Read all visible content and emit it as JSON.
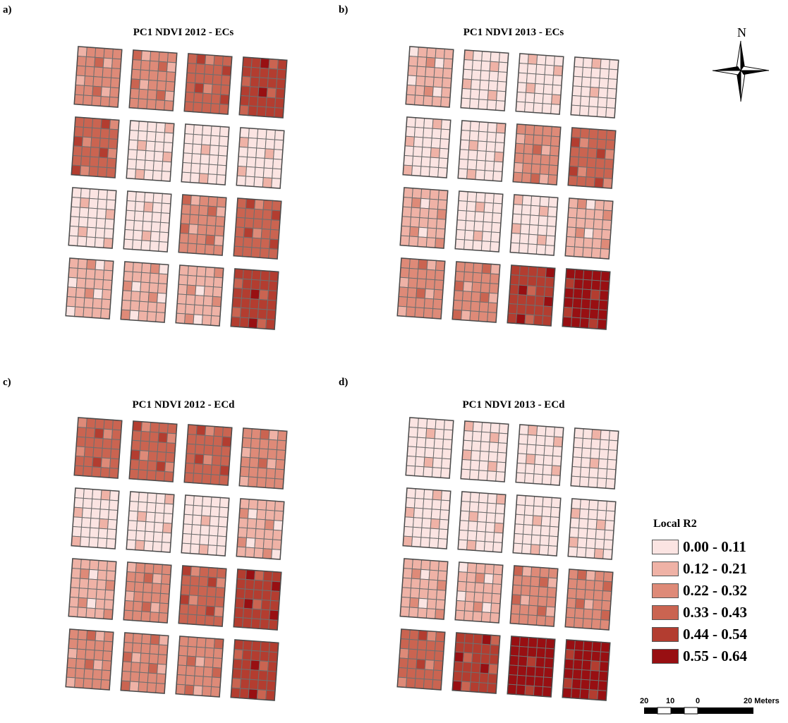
{
  "panels": [
    {
      "letter": "a)",
      "title": "PC1 NDVI 2012 - ECs"
    },
    {
      "letter": "b)",
      "title": "PC1 NDVI 2013 - ECs"
    },
    {
      "letter": "c)",
      "title": "PC1 NDVI 2012 - ECd"
    },
    {
      "letter": "d)",
      "title": "PC1 NDVI 2013 - ECd"
    }
  ],
  "north_arrow": {
    "label": "N",
    "icon": "compass-rose-icon"
  },
  "legend": {
    "title": "Local R2",
    "classes": [
      {
        "label": "0.00 - 0.11",
        "color": "#fbe4e2"
      },
      {
        "label": "0.12 - 0.21",
        "color": "#efb2a6"
      },
      {
        "label": "0.22 - 0.32",
        "color": "#de8a78"
      },
      {
        "label": "0.33 - 0.43",
        "color": "#ca6451"
      },
      {
        "label": "0.44 - 0.54",
        "color": "#b33d30"
      },
      {
        "label": "0.55 - 0.64",
        "color": "#980f12"
      }
    ]
  },
  "scale_bar": {
    "labels": [
      "20",
      "10",
      "0",
      "20 Meters"
    ]
  },
  "map_classes": {
    "a": [
      [
        2,
        2,
        3,
        4
      ],
      [
        3,
        0,
        0,
        0
      ],
      [
        0,
        0,
        2,
        3
      ],
      [
        1,
        1,
        1,
        4
      ]
    ],
    "b": [
      [
        1,
        0,
        0,
        0
      ],
      [
        0,
        0,
        2,
        3
      ],
      [
        1,
        0,
        0,
        1
      ],
      [
        2,
        2,
        4,
        5
      ]
    ],
    "c": [
      [
        3,
        3,
        3,
        2
      ],
      [
        0,
        0,
        0,
        1
      ],
      [
        1,
        2,
        3,
        4
      ],
      [
        2,
        2,
        2,
        4
      ]
    ],
    "d": [
      [
        0,
        0,
        0,
        0
      ],
      [
        0,
        0,
        0,
        0
      ],
      [
        1,
        1,
        2,
        2
      ],
      [
        3,
        4,
        5,
        5
      ]
    ]
  }
}
